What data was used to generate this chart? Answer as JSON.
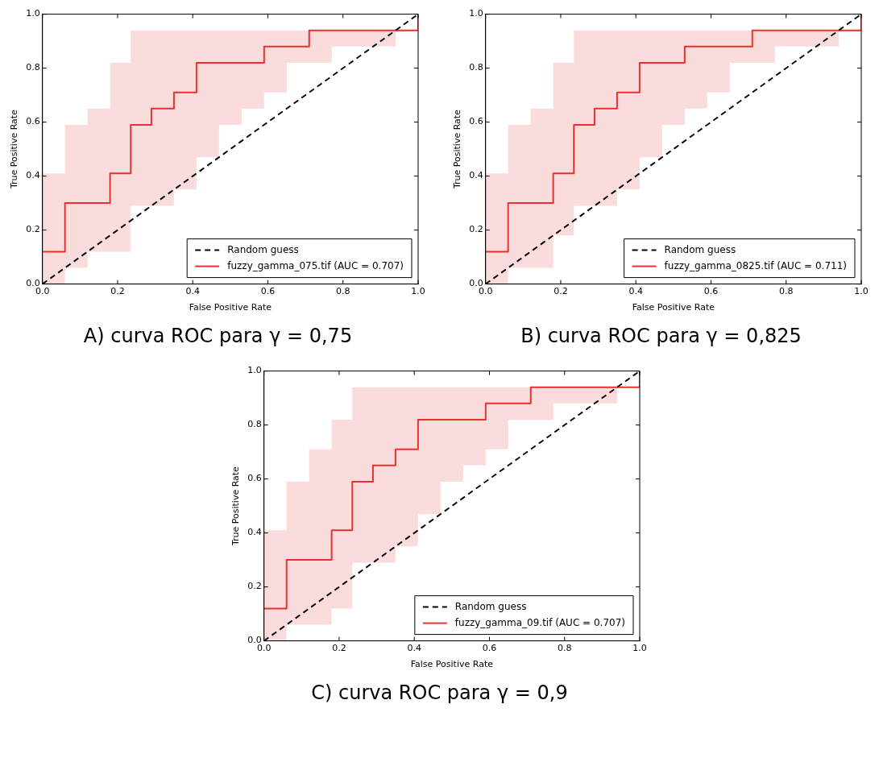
{
  "chart_data": [
    {
      "type": "step",
      "title": "A) curva ROC para γ = 0,75",
      "xlabel": "False Positive Rate",
      "ylabel": "True Positive Rate",
      "xlim": [
        0,
        1
      ],
      "ylim": [
        0,
        1
      ],
      "xticks": [
        {
          "value": 0,
          "label": "0.0"
        },
        {
          "value": 0.2,
          "label": "0.2"
        },
        {
          "value": 0.4,
          "label": "0.4"
        },
        {
          "value": 0.6,
          "label": "0.6"
        },
        {
          "value": 0.8,
          "label": "0.8"
        },
        {
          "value": 1,
          "label": "1.0"
        }
      ],
      "yticks": [
        {
          "value": 0,
          "label": "0.0"
        },
        {
          "value": 0.2,
          "label": "0.2"
        },
        {
          "value": 0.4,
          "label": "0.4"
        },
        {
          "value": 0.6,
          "label": "0.6"
        },
        {
          "value": 0.8,
          "label": "0.8"
        },
        {
          "value": 1,
          "label": "1.0"
        }
      ],
      "legend": "bottom right",
      "grid": false,
      "series": [
        {
          "name": "Random guess",
          "type": "line",
          "line_style": "dashed",
          "color": "#000000",
          "x": [
            0,
            1
          ],
          "values": [
            0,
            1
          ]
        },
        {
          "name": "fuzzy_gamma_075.tif (AUC = 0.707)",
          "color": "#e8302f",
          "x": [
            0,
            0.06,
            0.12,
            0.18,
            0.235,
            0.29,
            0.35,
            0.41,
            0.47,
            0.53,
            0.59,
            0.65,
            0.71,
            0.77,
            0.94,
            1
          ],
          "values": [
            0.12,
            0.3,
            0.3,
            0.41,
            0.59,
            0.65,
            0.71,
            0.82,
            0.82,
            0.82,
            0.88,
            0.88,
            0.94,
            0.94,
            0.94,
            1
          ],
          "lower": [
            0,
            0.06,
            0.12,
            0.12,
            0.29,
            0.29,
            0.35,
            0.47,
            0.59,
            0.65,
            0.71,
            0.82,
            0.82,
            0.88,
            0.94,
            1
          ],
          "upper": [
            0.41,
            0.59,
            0.65,
            0.82,
            0.94,
            0.94,
            0.94,
            0.94,
            0.94,
            0.94,
            0.94,
            0.94,
            0.94,
            0.94,
            0.94,
            1
          ]
        }
      ]
    },
    {
      "type": "step",
      "title": "B) curva ROC para γ = 0,825",
      "xlabel": "False Positive Rate",
      "ylabel": "True Positive Rate",
      "xlim": [
        0,
        1
      ],
      "ylim": [
        0,
        1
      ],
      "xticks": [
        {
          "value": 0,
          "label": "0.0"
        },
        {
          "value": 0.2,
          "label": "0.2"
        },
        {
          "value": 0.4,
          "label": "0.4"
        },
        {
          "value": 0.6,
          "label": "0.6"
        },
        {
          "value": 0.8,
          "label": "0.8"
        },
        {
          "value": 1,
          "label": "1.0"
        }
      ],
      "yticks": [
        {
          "value": 0,
          "label": "0.0"
        },
        {
          "value": 0.2,
          "label": "0.2"
        },
        {
          "value": 0.4,
          "label": "0.4"
        },
        {
          "value": 0.6,
          "label": "0.6"
        },
        {
          "value": 0.8,
          "label": "0.8"
        },
        {
          "value": 1,
          "label": "1.0"
        }
      ],
      "legend": "bottom right",
      "grid": false,
      "series": [
        {
          "name": "Random guess",
          "type": "line",
          "line_style": "dashed",
          "color": "#000000",
          "x": [
            0,
            1
          ],
          "values": [
            0,
            1
          ]
        },
        {
          "name": "fuzzy_gamma_0825.tif (AUC = 0.711)",
          "color": "#e8302f",
          "x": [
            0,
            0.06,
            0.12,
            0.18,
            0.235,
            0.29,
            0.35,
            0.41,
            0.47,
            0.53,
            0.59,
            0.65,
            0.71,
            0.77,
            0.94,
            1
          ],
          "values": [
            0.12,
            0.3,
            0.3,
            0.41,
            0.59,
            0.65,
            0.71,
            0.82,
            0.82,
            0.88,
            0.88,
            0.88,
            0.94,
            0.94,
            0.94,
            1
          ],
          "lower": [
            0,
            0.06,
            0.06,
            0.18,
            0.29,
            0.29,
            0.35,
            0.47,
            0.59,
            0.65,
            0.71,
            0.82,
            0.82,
            0.88,
            0.94,
            1
          ],
          "upper": [
            0.41,
            0.59,
            0.65,
            0.82,
            0.94,
            0.94,
            0.94,
            0.94,
            0.94,
            0.94,
            0.94,
            0.94,
            0.94,
            0.94,
            0.94,
            1
          ]
        }
      ]
    },
    {
      "type": "step",
      "title": "C) curva ROC para γ = 0,9",
      "xlabel": "False Positive Rate",
      "ylabel": "True Positive Rate",
      "xlim": [
        0,
        1
      ],
      "ylim": [
        0,
        1
      ],
      "xticks": [
        {
          "value": 0,
          "label": "0.0"
        },
        {
          "value": 0.2,
          "label": "0.2"
        },
        {
          "value": 0.4,
          "label": "0.4"
        },
        {
          "value": 0.6,
          "label": "0.6"
        },
        {
          "value": 0.8,
          "label": "0.8"
        },
        {
          "value": 1,
          "label": "1.0"
        }
      ],
      "yticks": [
        {
          "value": 0,
          "label": "0.0"
        },
        {
          "value": 0.2,
          "label": "0.2"
        },
        {
          "value": 0.4,
          "label": "0.4"
        },
        {
          "value": 0.6,
          "label": "0.6"
        },
        {
          "value": 0.8,
          "label": "0.8"
        },
        {
          "value": 1,
          "label": "1.0"
        }
      ],
      "legend": "bottom right",
      "grid": false,
      "series": [
        {
          "name": "Random guess",
          "type": "line",
          "line_style": "dashed",
          "color": "#000000",
          "x": [
            0,
            1
          ],
          "values": [
            0,
            1
          ]
        },
        {
          "name": "fuzzy_gamma_09.tif (AUC = 0.707)",
          "color": "#e8302f",
          "x": [
            0,
            0.06,
            0.12,
            0.18,
            0.235,
            0.29,
            0.35,
            0.41,
            0.47,
            0.53,
            0.59,
            0.65,
            0.71,
            0.77,
            0.94,
            1
          ],
          "values": [
            0.12,
            0.3,
            0.3,
            0.41,
            0.59,
            0.65,
            0.71,
            0.82,
            0.82,
            0.82,
            0.88,
            0.88,
            0.94,
            0.94,
            0.94,
            1
          ],
          "lower": [
            0,
            0.06,
            0.06,
            0.12,
            0.29,
            0.29,
            0.35,
            0.47,
            0.59,
            0.65,
            0.71,
            0.82,
            0.82,
            0.88,
            0.94,
            1
          ],
          "upper": [
            0.41,
            0.59,
            0.71,
            0.82,
            0.94,
            0.94,
            0.94,
            0.94,
            0.94,
            0.94,
            0.94,
            0.94,
            0.94,
            0.94,
            0.94,
            1
          ]
        }
      ]
    }
  ]
}
